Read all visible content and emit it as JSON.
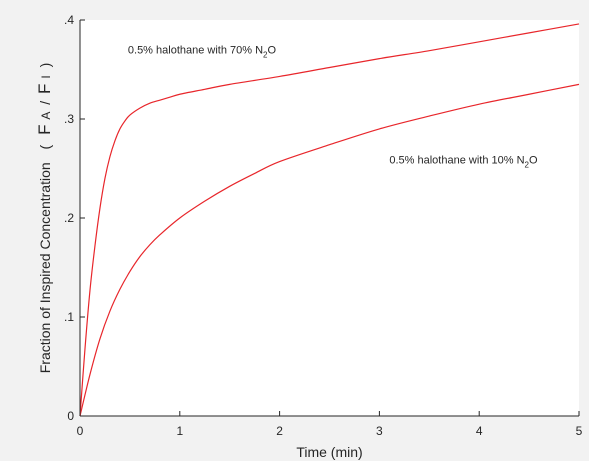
{
  "colors": {
    "figure_background": "#f2f2f2",
    "plot_background": "#ffffff",
    "axis": "#262626",
    "curve": "#e8262b"
  },
  "chart_data": {
    "type": "line",
    "title": "",
    "xlabel": "Time (min)",
    "ylabel_parts": {
      "main": "Fraction of Inspired Concentration",
      "open_paren": "(",
      "f1": "F",
      "s1": "A",
      "slash": "/",
      "f2": "F",
      "s2": "I",
      "close_paren": ")"
    },
    "xlim": [
      0,
      5
    ],
    "ylim": [
      0,
      0.4
    ],
    "xticks": [
      0,
      1,
      2,
      3,
      4,
      5
    ],
    "xtick_labels": [
      "0",
      "1",
      "2",
      "3",
      "4",
      "5"
    ],
    "yticks": [
      0,
      0.1,
      0.2,
      0.3,
      0.4
    ],
    "ytick_labels": [
      "0",
      ".1",
      ".2",
      ".3",
      ".4"
    ],
    "grid": false,
    "legend": "none",
    "series": [
      {
        "color": "#e8262b",
        "x": [
          0,
          0.05,
          0.1,
          0.15,
          0.2,
          0.25,
          0.3,
          0.35,
          0.4,
          0.45,
          0.5,
          0.6,
          0.7,
          0.8,
          0.9,
          1.0,
          1.25,
          1.5,
          2.0,
          2.5,
          3.0,
          3.5,
          4.0,
          4.5,
          5.0
        ],
        "y": [
          0,
          0.068,
          0.127,
          0.172,
          0.21,
          0.24,
          0.262,
          0.278,
          0.29,
          0.298,
          0.304,
          0.311,
          0.316,
          0.319,
          0.322,
          0.325,
          0.33,
          0.335,
          0.343,
          0.352,
          0.361,
          0.369,
          0.378,
          0.387,
          0.396
        ]
      },
      {
        "color": "#e8262b",
        "x": [
          0,
          0.1,
          0.2,
          0.3,
          0.4,
          0.5,
          0.6,
          0.7,
          0.8,
          1.0,
          1.25,
          1.5,
          1.75,
          2.0,
          2.5,
          3.0,
          3.5,
          4.0,
          4.5,
          5.0
        ],
        "y": [
          0,
          0.042,
          0.078,
          0.106,
          0.128,
          0.146,
          0.161,
          0.173,
          0.183,
          0.2,
          0.217,
          0.232,
          0.245,
          0.257,
          0.274,
          0.29,
          0.303,
          0.315,
          0.325,
          0.335
        ]
      }
    ],
    "annotations": [
      {
        "text": "0.5% halothane with 70% N",
        "sub": "2",
        "suffix": "O",
        "x": 0.48,
        "y": 0.366
      },
      {
        "text": "0.5% halothane with 10% N",
        "sub": "2",
        "suffix": "O",
        "x": 3.1,
        "y": 0.255
      }
    ]
  }
}
